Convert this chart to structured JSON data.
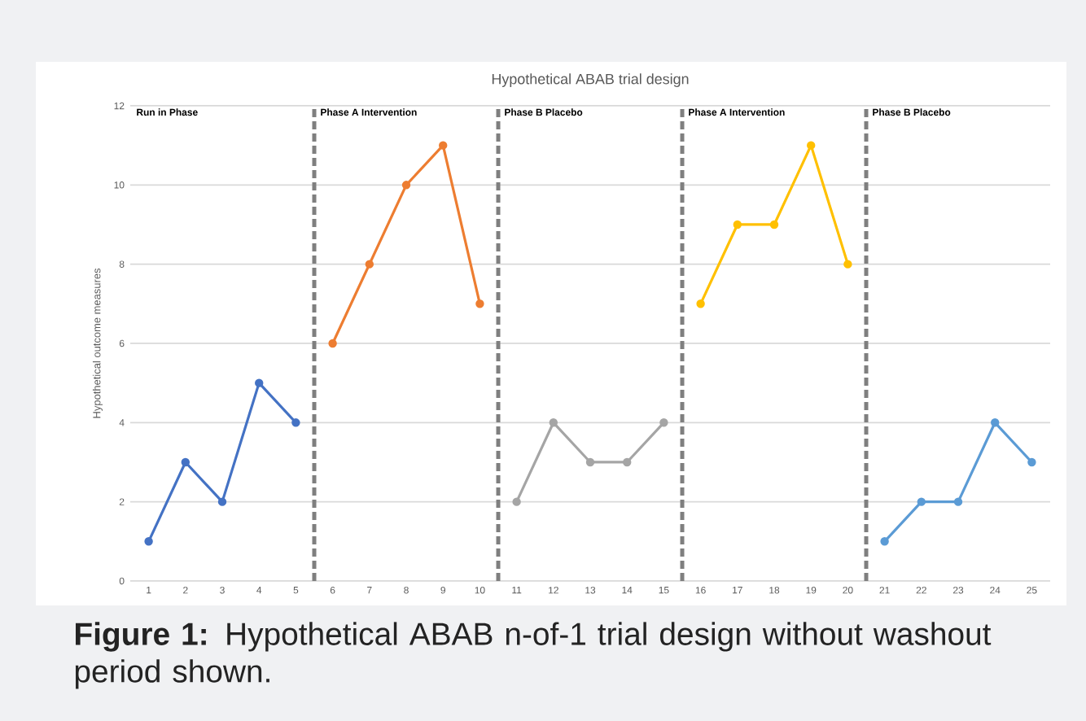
{
  "chart_data": {
    "type": "line",
    "title": "Hypothetical ABAB trial design",
    "ylabel": "Hypothetical outcome measures",
    "series": [
      {
        "color": "#4472c4",
        "x": [
          1,
          2,
          3,
          4,
          5
        ],
        "values": [
          1,
          3,
          2,
          5,
          4
        ]
      },
      {
        "color": "#ed7d31",
        "x": [
          6,
          7,
          8,
          9,
          10
        ],
        "values": [
          6,
          8,
          10,
          11,
          7
        ]
      },
      {
        "color": "#a5a5a5",
        "x": [
          11,
          12,
          13,
          14,
          15
        ],
        "values": [
          2,
          4,
          3,
          3,
          4
        ]
      },
      {
        "color": "#ffc000",
        "x": [
          16,
          17,
          18,
          19,
          20
        ],
        "values": [
          7,
          9,
          9,
          11,
          8
        ]
      },
      {
        "color": "#5b9bd5",
        "x": [
          21,
          22,
          23,
          24,
          25
        ],
        "values": [
          1,
          2,
          2,
          4,
          3
        ]
      }
    ],
    "xlim": [
      0.5,
      25.5
    ],
    "xticks": [
      1,
      2,
      3,
      4,
      5,
      6,
      7,
      8,
      9,
      10,
      11,
      12,
      13,
      14,
      15,
      16,
      17,
      18,
      19,
      20,
      21,
      22,
      23,
      24,
      25
    ],
    "ylim": [
      0,
      12
    ],
    "yticks": [
      0,
      2,
      4,
      6,
      8,
      10,
      12
    ],
    "grid": "y",
    "marker": "circle",
    "line_style": "solid",
    "ref_lines": [
      {
        "axis": "x",
        "value": 5.5,
        "color": "#7f7f7f",
        "line_style": "dashed"
      },
      {
        "axis": "x",
        "value": 10.5,
        "color": "#7f7f7f",
        "line_style": "dashed"
      },
      {
        "axis": "x",
        "value": 15.5,
        "color": "#7f7f7f",
        "line_style": "dashed"
      },
      {
        "axis": "x",
        "value": 20.5,
        "color": "#7f7f7f",
        "line_style": "dashed"
      }
    ],
    "annotations": [
      "Run in Phase",
      {
        "text": "Phase A Intervention",
        "x": 5.5,
        "y": 12
      },
      {
        "text": "Phase B Placebo",
        "x": 10.5,
        "y": 12
      },
      {
        "text": "Phase A Intervention",
        "x": 15.5,
        "y": 12
      },
      {
        "text": "Phase B Placebo",
        "x": 20.5,
        "y": 12
      },
      "**Figure 1:** Hypothetical ABAB n-of-1 trial design without washout period shown."
    ]
  }
}
